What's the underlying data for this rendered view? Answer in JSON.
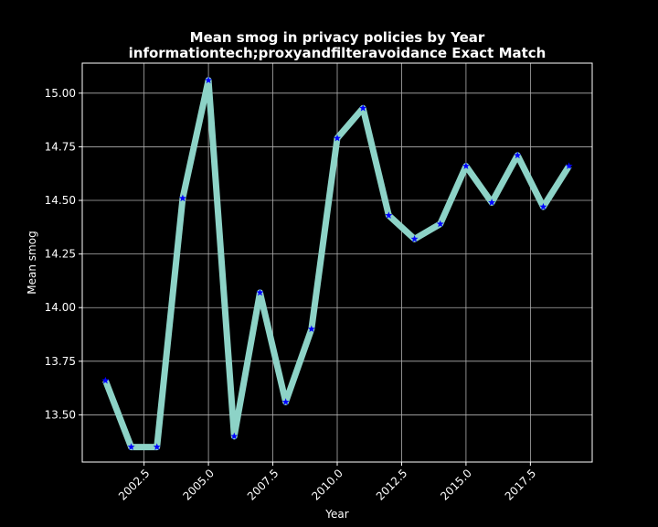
{
  "chart_data": {
    "type": "line",
    "title": "Mean smog in privacy policies by Year",
    "subtitle": "informationtech;proxyandfilteravoidance Exact Match",
    "xlabel": "Year",
    "ylabel": "Mean smog",
    "xlim": [
      2000.1,
      2019.9
    ],
    "ylim": [
      13.28,
      15.14
    ],
    "xticks": [
      2002.5,
      2005.0,
      2007.5,
      2010.0,
      2012.5,
      2015.0,
      2017.5
    ],
    "xtick_labels": [
      "2002.5",
      "2005.0",
      "2007.5",
      "2010.0",
      "2012.5",
      "2015.0",
      "2017.5"
    ],
    "yticks": [
      13.5,
      13.75,
      14.0,
      14.25,
      14.5,
      14.75,
      15.0
    ],
    "ytick_labels": [
      "13.50",
      "13.75",
      "14.00",
      "14.25",
      "14.50",
      "14.75",
      "15.00"
    ],
    "grid": true,
    "background_color": "#000000",
    "line_color": "#8dd3c7",
    "marker_color": "#0000ff",
    "marker": "star",
    "series": [
      {
        "x": [
          2001,
          2002,
          2003,
          2004,
          2005,
          2006,
          2007,
          2008,
          2009,
          2010,
          2011,
          2012,
          2013,
          2014,
          2015,
          2016,
          2017,
          2018,
          2019
        ],
        "values": [
          13.66,
          13.35,
          13.35,
          14.51,
          15.06,
          13.4,
          14.07,
          13.56,
          13.9,
          14.79,
          14.93,
          14.43,
          14.32,
          14.39,
          14.66,
          14.49,
          14.71,
          14.47,
          14.66
        ]
      }
    ]
  }
}
